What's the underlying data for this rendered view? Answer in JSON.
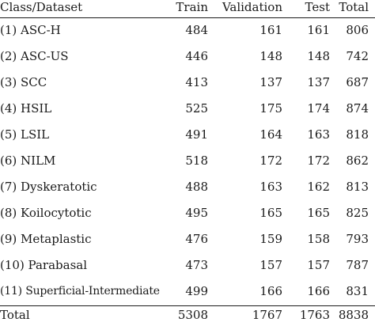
{
  "table": {
    "headers": {
      "class": "Class/Dataset",
      "train": "Train",
      "validation": "Validation",
      "test": "Test",
      "total": "Total"
    },
    "rows": [
      {
        "class": "(1) ASC-H",
        "train": "484",
        "validation": "161",
        "test": "161",
        "total": "806"
      },
      {
        "class": "(2) ASC-US",
        "train": "446",
        "validation": "148",
        "test": "148",
        "total": "742"
      },
      {
        "class": "(3) SCC",
        "train": "413",
        "validation": "137",
        "test": "137",
        "total": "687"
      },
      {
        "class": "(4) HSIL",
        "train": "525",
        "validation": "175",
        "test": "174",
        "total": "874"
      },
      {
        "class": "(5) LSIL",
        "train": "491",
        "validation": "164",
        "test": "163",
        "total": "818"
      },
      {
        "class": "(6) NILM",
        "train": "518",
        "validation": "172",
        "test": "172",
        "total": "862"
      },
      {
        "class": "(7) Dyskeratotic",
        "train": "488",
        "validation": "163",
        "test": "162",
        "total": "813"
      },
      {
        "class": "(8) Koilocytotic",
        "train": "495",
        "validation": "165",
        "test": "165",
        "total": "825"
      },
      {
        "class": "(9) Metaplastic",
        "train": "476",
        "validation": "159",
        "test": "158",
        "total": "793"
      },
      {
        "class": "(10) Parabasal",
        "train": "473",
        "validation": "157",
        "test": "157",
        "total": "787"
      },
      {
        "class": "(11) Superficial-Intermediate",
        "train": "499",
        "validation": "166",
        "test": "166",
        "total": "831"
      }
    ],
    "footer": {
      "class": "Total",
      "train": "5308",
      "validation": "1767",
      "test": "1763",
      "total": "8838"
    }
  }
}
